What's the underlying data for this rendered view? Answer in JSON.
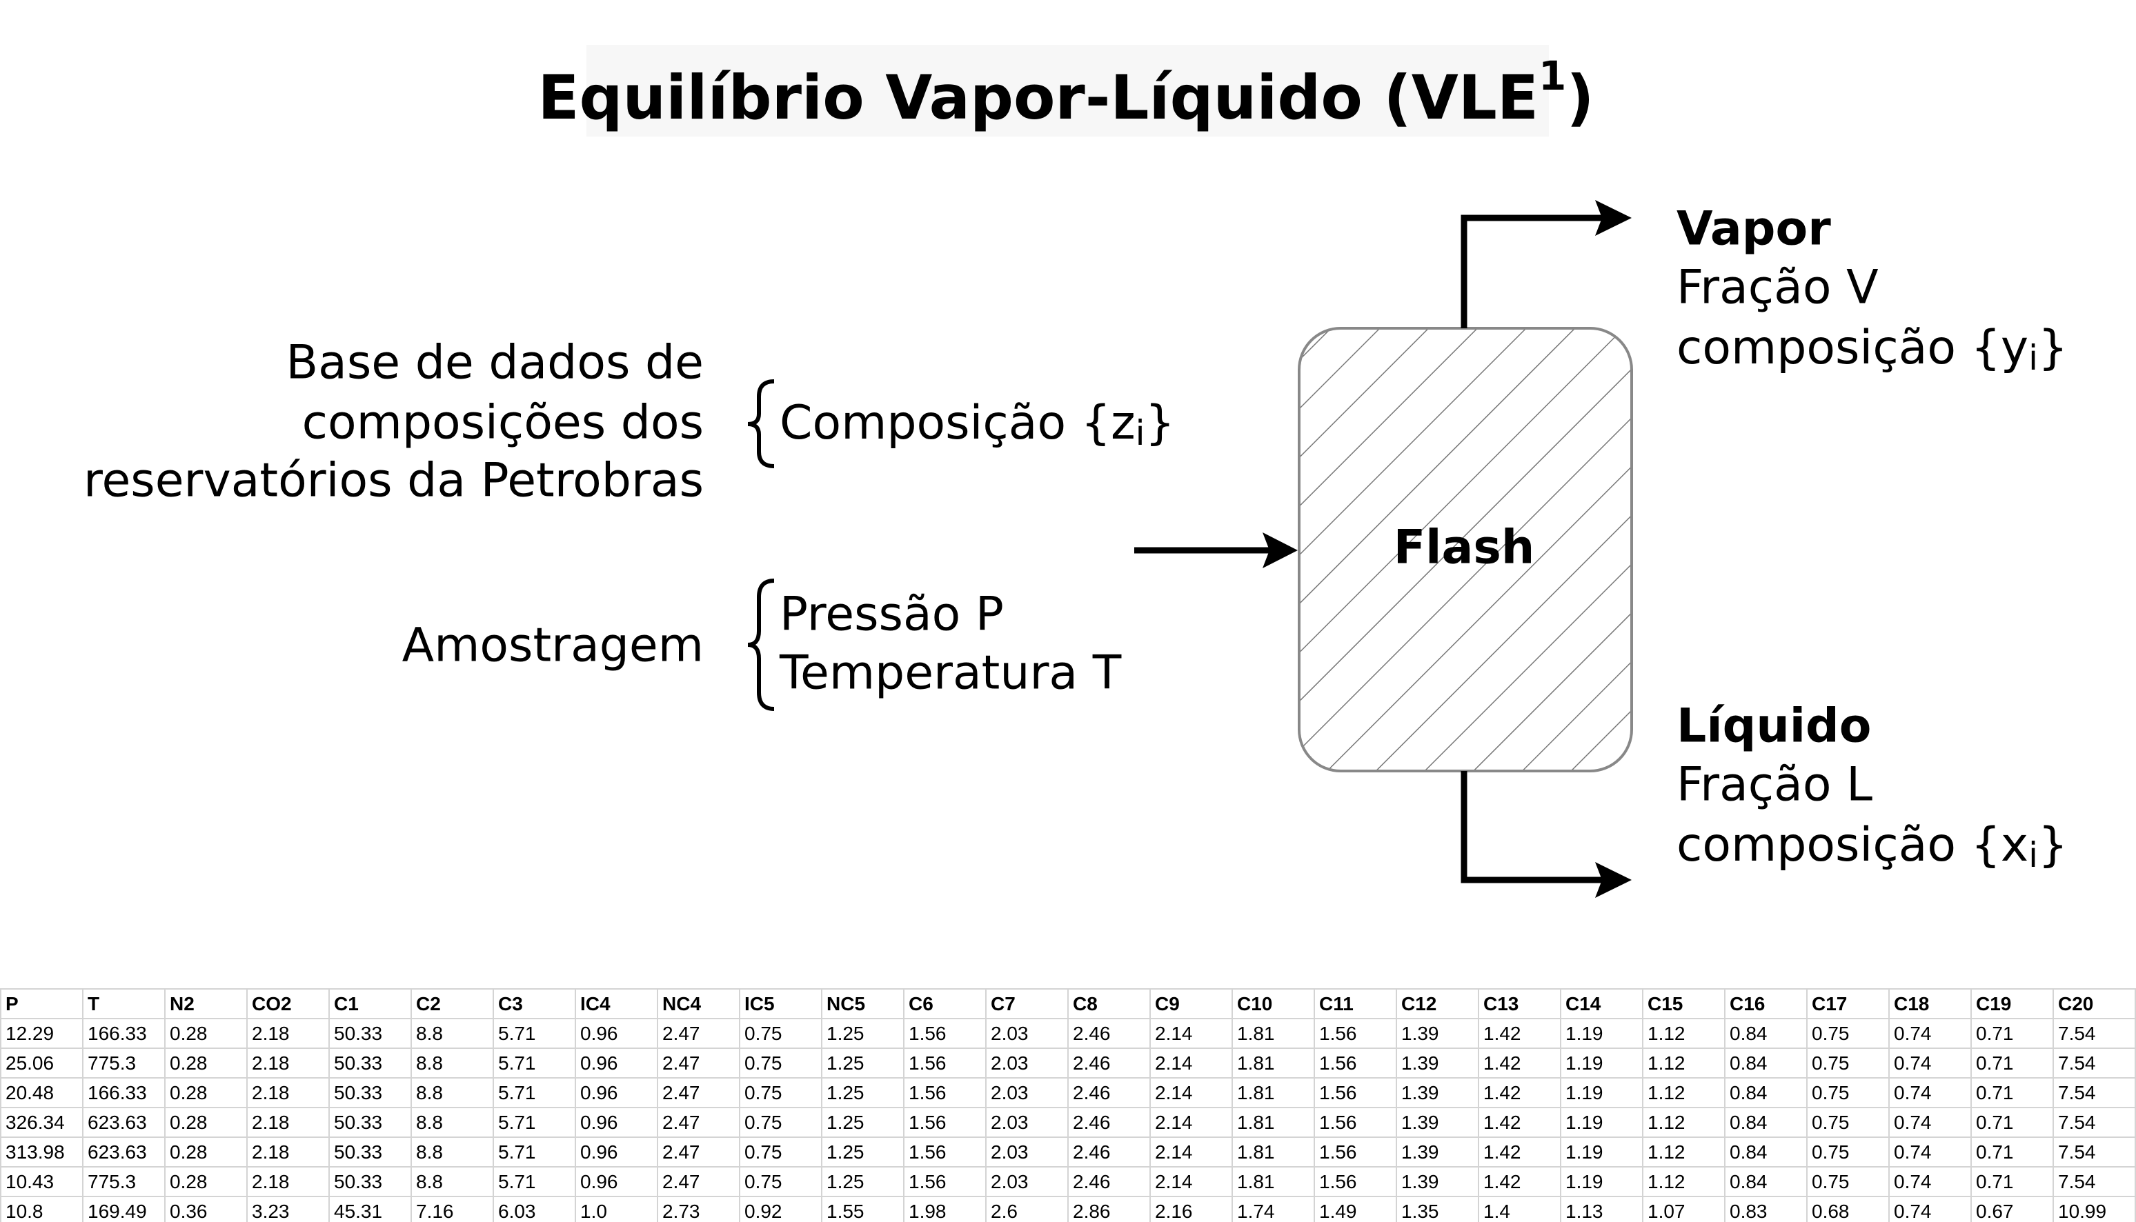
{
  "title": {
    "main": "Equilíbrio Vapor-Líquido (VLE",
    "sup": "1",
    "end": ")"
  },
  "inputs": {
    "database": {
      "lines": [
        "Base de dados de",
        "composições dos",
        "reservatórios da Petrobras"
      ],
      "item": {
        "text": "Composição {z",
        "sub": "i",
        "end": "}"
      }
    },
    "sampling": {
      "label": "Amostragem",
      "items": [
        "Pressão P",
        "Temperatura T"
      ]
    }
  },
  "flash": {
    "label": "Flash"
  },
  "outputs": {
    "vapor": {
      "title": "Vapor",
      "fraction": "Fração V",
      "composition": {
        "text": "composição {y",
        "sub": "i",
        "end": "}"
      }
    },
    "liquid": {
      "title": "Líquido",
      "fraction": "Fração L",
      "composition": {
        "text": "composição {x",
        "sub": "i",
        "end": "}"
      }
    }
  },
  "table": {
    "header": [
      "P",
      "T",
      "N2",
      "CO2",
      "C1",
      "C2",
      "C3",
      "IC4",
      "NC4",
      "IC5",
      "NC5",
      "C6",
      "C7",
      "C8",
      "C9",
      "C10",
      "C11",
      "C12",
      "C13",
      "C14",
      "C15",
      "C16",
      "C17",
      "C18",
      "C19",
      "C20"
    ],
    "rows": [
      [
        "12.29",
        "166.33",
        "0.28",
        "2.18",
        "50.33",
        "8.8",
        "5.71",
        "0.96",
        "2.47",
        "0.75",
        "1.25",
        "1.56",
        "2.03",
        "2.46",
        "2.14",
        "1.81",
        "1.56",
        "1.39",
        "1.42",
        "1.19",
        "1.12",
        "0.84",
        "0.75",
        "0.74",
        "0.71",
        "7.54"
      ],
      [
        "25.06",
        "775.3",
        "0.28",
        "2.18",
        "50.33",
        "8.8",
        "5.71",
        "0.96",
        "2.47",
        "0.75",
        "1.25",
        "1.56",
        "2.03",
        "2.46",
        "2.14",
        "1.81",
        "1.56",
        "1.39",
        "1.42",
        "1.19",
        "1.12",
        "0.84",
        "0.75",
        "0.74",
        "0.71",
        "7.54"
      ],
      [
        "20.48",
        "166.33",
        "0.28",
        "2.18",
        "50.33",
        "8.8",
        "5.71",
        "0.96",
        "2.47",
        "0.75",
        "1.25",
        "1.56",
        "2.03",
        "2.46",
        "2.14",
        "1.81",
        "1.56",
        "1.39",
        "1.42",
        "1.19",
        "1.12",
        "0.84",
        "0.75",
        "0.74",
        "0.71",
        "7.54"
      ],
      [
        "326.34",
        "623.63",
        "0.28",
        "2.18",
        "50.33",
        "8.8",
        "5.71",
        "0.96",
        "2.47",
        "0.75",
        "1.25",
        "1.56",
        "2.03",
        "2.46",
        "2.14",
        "1.81",
        "1.56",
        "1.39",
        "1.42",
        "1.19",
        "1.12",
        "0.84",
        "0.75",
        "0.74",
        "0.71",
        "7.54"
      ],
      [
        "313.98",
        "623.63",
        "0.28",
        "2.18",
        "50.33",
        "8.8",
        "5.71",
        "0.96",
        "2.47",
        "0.75",
        "1.25",
        "1.56",
        "2.03",
        "2.46",
        "2.14",
        "1.81",
        "1.56",
        "1.39",
        "1.42",
        "1.19",
        "1.12",
        "0.84",
        "0.75",
        "0.74",
        "0.71",
        "7.54"
      ],
      [
        "10.43",
        "775.3",
        "0.28",
        "2.18",
        "50.33",
        "8.8",
        "5.71",
        "0.96",
        "2.47",
        "0.75",
        "1.25",
        "1.56",
        "2.03",
        "2.46",
        "2.14",
        "1.81",
        "1.56",
        "1.39",
        "1.42",
        "1.19",
        "1.12",
        "0.84",
        "0.75",
        "0.74",
        "0.71",
        "7.54"
      ],
      [
        "10.8",
        "169.49",
        "0.36",
        "3.23",
        "45.31",
        "7.16",
        "6.03",
        "1.0",
        "2.73",
        "0.92",
        "1.55",
        "1.98",
        "2.6",
        "2.86",
        "2.16",
        "1.74",
        "1.49",
        "1.35",
        "1.4",
        "1.13",
        "1.07",
        "0.83",
        "0.68",
        "0.74",
        "0.67",
        "10.99"
      ]
    ]
  }
}
